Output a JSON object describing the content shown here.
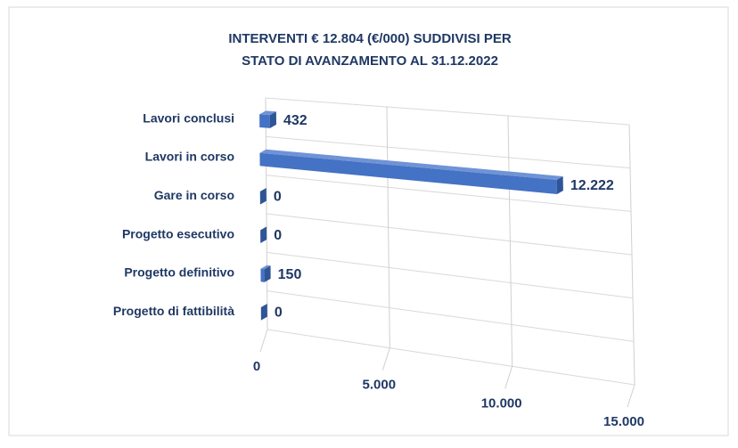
{
  "chart_data": {
    "type": "bar3d",
    "title": "INTERVENTI € 12.804 (€/000) SUDDIVISI PER",
    "subtitle": "STATO DI AVANZAMENTO AL 31.12.2022",
    "categories": [
      "Lavori conclusi",
      "Lavori in corso",
      "Gare in corso",
      "Progetto esecutivo",
      "Progetto definitivo",
      "Progetto di fattibilità"
    ],
    "values": [
      432,
      12222,
      0,
      0,
      150,
      0
    ],
    "value_labels": [
      "432",
      "12.222",
      "0",
      "0",
      "150",
      "0"
    ],
    "color": "#4472c4",
    "xlim": [
      0,
      15000
    ],
    "xticks": [
      0,
      {
        "value": 5000,
        "label": "5.000"
      },
      {
        "value": 10000,
        "label": "10.000"
      },
      {
        "value": 15000,
        "label": "15.000"
      }
    ],
    "grid": true
  }
}
